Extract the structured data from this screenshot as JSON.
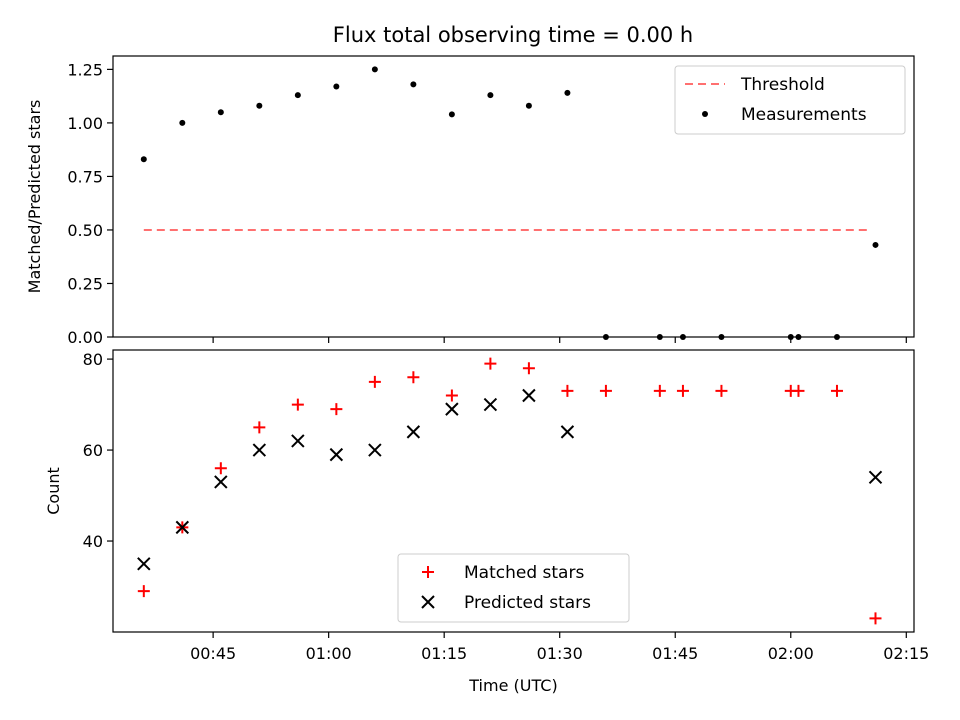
{
  "chart_data": [
    {
      "type": "scatter",
      "title": "Flux total observing time = 0.00 h",
      "xlabel": "",
      "ylabel": "Matched/Predicted stars",
      "xlim": [
        "00:32",
        "02:16"
      ],
      "ylim": [
        0,
        1.3125
      ],
      "yticks": [
        0.0,
        0.25,
        0.5,
        0.75,
        1.0,
        1.25
      ],
      "ytick_labels": [
        "0.00",
        "0.25",
        "0.50",
        "0.75",
        "1.00",
        "1.25"
      ],
      "xticks": [
        "00:45",
        "01:00",
        "01:15",
        "01:30",
        "01:45",
        "02:00",
        "02:15"
      ],
      "legend": {
        "placement": "upper right",
        "entries": [
          {
            "label": "Threshold",
            "color": "#ff7070",
            "marker": "dashed-line"
          },
          {
            "label": "Measurements",
            "color": "#000000",
            "marker": "dot"
          }
        ]
      },
      "series": [
        {
          "name": "Threshold",
          "kind": "dashed-line",
          "color": "#ff7070",
          "x": [
            "00:36",
            "02:10"
          ],
          "y": [
            0.5,
            0.5
          ]
        },
        {
          "name": "Measurements",
          "kind": "dot",
          "color": "#000000",
          "x": [
            "00:36",
            "00:41",
            "00:46",
            "00:51",
            "00:56",
            "01:01",
            "01:06",
            "01:11",
            "01:16",
            "01:21",
            "01:26",
            "01:31",
            "01:36",
            "01:43",
            "01:46",
            "01:51",
            "02:00",
            "02:01",
            "02:06",
            "02:11"
          ],
          "y": [
            0.83,
            1.0,
            1.05,
            1.08,
            1.13,
            1.17,
            1.25,
            1.18,
            1.04,
            1.13,
            1.08,
            1.14,
            0.0,
            0.0,
            0.0,
            0.0,
            0.0,
            0.0,
            0.0,
            0.43
          ]
        }
      ]
    },
    {
      "type": "scatter",
      "title": "",
      "xlabel": "Time (UTC)",
      "ylabel": "Count",
      "xlim": [
        "00:32",
        "02:16"
      ],
      "ylim": [
        20,
        82
      ],
      "yticks": [
        40,
        60,
        80
      ],
      "ytick_labels": [
        "40",
        "60",
        "80"
      ],
      "xticks": [
        "00:45",
        "01:00",
        "01:15",
        "01:30",
        "01:45",
        "02:00",
        "02:15"
      ],
      "xtick_labels": [
        "00:45",
        "01:00",
        "01:15",
        "01:30",
        "01:45",
        "02:00",
        "02:15"
      ],
      "legend": {
        "placement": "lower center",
        "entries": [
          {
            "label": "Matched stars",
            "color": "#ff0000",
            "marker": "plus"
          },
          {
            "label": "Predicted stars",
            "color": "#000000",
            "marker": "x"
          }
        ]
      },
      "series": [
        {
          "name": "Matched stars",
          "kind": "plus",
          "color": "#ff0000",
          "x": [
            "00:36",
            "00:41",
            "00:46",
            "00:51",
            "00:56",
            "01:01",
            "01:06",
            "01:11",
            "01:16",
            "01:21",
            "01:26",
            "01:31",
            "01:36",
            "01:43",
            "01:46",
            "01:51",
            "02:00",
            "02:01",
            "02:06",
            "02:11"
          ],
          "y": [
            29,
            43,
            56,
            65,
            70,
            69,
            75,
            76,
            72,
            79,
            78,
            73,
            73,
            73,
            73,
            73,
            73,
            73,
            73,
            23
          ]
        },
        {
          "name": "Predicted stars",
          "kind": "x",
          "color": "#000000",
          "x": [
            "00:36",
            "00:41",
            "00:46",
            "00:51",
            "00:56",
            "01:01",
            "01:06",
            "01:11",
            "01:16",
            "01:21",
            "01:26",
            "01:31",
            "02:11"
          ],
          "y": [
            35,
            43,
            53,
            60,
            62,
            59,
            60,
            64,
            69,
            70,
            72,
            64,
            54
          ]
        }
      ]
    }
  ]
}
